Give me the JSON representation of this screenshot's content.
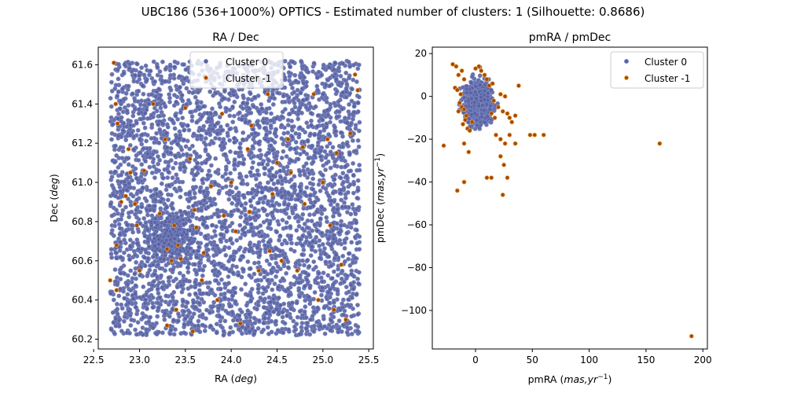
{
  "figure_title": "UBC186 (536+1000%) OPTICS - Estimated number of clusters: 1 (Silhouette: 0.8686)",
  "colors": {
    "cluster_0": "#5b5fa0",
    "cluster_0_edge": "#7b8fc8",
    "cluster_minus1": "#a6490b",
    "cluster_minus1_edge": "#f2b24a",
    "axis": "#000000"
  },
  "chart_data": [
    {
      "type": "scatter",
      "title": "RA / Dec",
      "xlabel": "RA (deg)",
      "ylabel": "Dec (deg)",
      "xlim": [
        22.55,
        25.55
      ],
      "ylim": [
        60.15,
        61.69
      ],
      "xticks": [
        "22.5",
        "23.0",
        "23.5",
        "24.0",
        "24.5",
        "25.0",
        "25.5"
      ],
      "yticks": [
        "60.2",
        "60.4",
        "60.6",
        "60.8",
        "61.0",
        "61.2",
        "61.4",
        "61.6"
      ],
      "grid": false,
      "legend_position": "top-center",
      "series": [
        {
          "name": "Cluster 0",
          "density": "dense uniform field",
          "ra_range": [
            22.68,
            25.4
          ],
          "dec_range": [
            60.22,
            61.62
          ],
          "concentration_center": [
            23.35,
            60.72
          ],
          "point_count_approx": 5300
        },
        {
          "name": "Cluster -1",
          "points": [
            [
              22.72,
              61.61
            ],
            [
              22.74,
              61.4
            ],
            [
              22.76,
              61.3
            ],
            [
              22.68,
              60.5
            ],
            [
              22.75,
              60.45
            ],
            [
              22.75,
              60.68
            ],
            [
              22.8,
              60.9
            ],
            [
              22.85,
              60.93
            ],
            [
              22.88,
              61.17
            ],
            [
              22.9,
              61.05
            ],
            [
              22.95,
              60.89
            ],
            [
              22.97,
              60.78
            ],
            [
              23.0,
              60.55
            ],
            [
              23.05,
              61.06
            ],
            [
              23.15,
              61.4
            ],
            [
              23.22,
              60.84
            ],
            [
              23.28,
              61.22
            ],
            [
              23.3,
              60.66
            ],
            [
              23.35,
              60.6
            ],
            [
              23.38,
              60.78
            ],
            [
              23.42,
              60.68
            ],
            [
              23.45,
              60.61
            ],
            [
              23.5,
              61.38
            ],
            [
              23.55,
              61.12
            ],
            [
              23.6,
              60.86
            ],
            [
              23.62,
              60.77
            ],
            [
              23.68,
              60.5
            ],
            [
              23.7,
              60.64
            ],
            [
              23.78,
              60.98
            ],
            [
              23.85,
              60.4
            ],
            [
              23.9,
              61.35
            ],
            [
              23.92,
              60.83
            ],
            [
              24.0,
              61.0
            ],
            [
              24.05,
              60.75
            ],
            [
              24.1,
              60.28
            ],
            [
              24.18,
              61.17
            ],
            [
              24.2,
              60.85
            ],
            [
              24.22,
              61.29
            ],
            [
              24.3,
              60.55
            ],
            [
              24.4,
              61.45
            ],
            [
              24.42,
              60.65
            ],
            [
              24.45,
              60.94
            ],
            [
              24.5,
              61.1
            ],
            [
              24.55,
              60.6
            ],
            [
              24.62,
              61.22
            ],
            [
              24.65,
              61.05
            ],
            [
              24.72,
              60.55
            ],
            [
              24.78,
              61.18
            ],
            [
              24.8,
              60.89
            ],
            [
              24.9,
              61.45
            ],
            [
              24.95,
              60.4
            ],
            [
              25.0,
              61.0
            ],
            [
              25.05,
              61.22
            ],
            [
              25.08,
              60.78
            ],
            [
              25.12,
              60.35
            ],
            [
              25.15,
              61.15
            ],
            [
              25.2,
              60.58
            ],
            [
              25.25,
              60.3
            ],
            [
              25.3,
              61.25
            ],
            [
              25.35,
              61.55
            ],
            [
              25.38,
              61.47
            ],
            [
              23.3,
              60.27
            ],
            [
              23.4,
              60.35
            ],
            [
              23.58,
              60.24
            ]
          ]
        }
      ]
    },
    {
      "type": "scatter",
      "title": "pmRA / pmDec",
      "xlabel": "pmRA (mas,yr^-1)",
      "ylabel": "pmDec (mas,yr^-1)",
      "xlim": [
        -38,
        204
      ],
      "ylim": [
        -118,
        23
      ],
      "xticks": [
        "0",
        "50",
        "100",
        "150",
        "200"
      ],
      "yticks": [
        "20",
        "0",
        "-20",
        "-40",
        "-60",
        "-80",
        "-100"
      ],
      "grid": false,
      "legend_position": "top-right",
      "series": [
        {
          "name": "Cluster 0",
          "density": "dense blob",
          "center": [
            2,
            -3
          ],
          "spread": [
            5,
            4
          ],
          "point_count_approx": 5300
        },
        {
          "name": "Cluster -1",
          "points": [
            [
              -20,
              15
            ],
            [
              -17,
              14
            ],
            [
              -15,
              10
            ],
            [
              -12,
              12
            ],
            [
              -10,
              8
            ],
            [
              -18,
              4
            ],
            [
              -16,
              3
            ],
            [
              -13,
              1
            ],
            [
              -14,
              -3
            ],
            [
              -12,
              -5
            ],
            [
              -10,
              -6
            ],
            [
              -8,
              -9
            ],
            [
              -15,
              -7
            ],
            [
              -9,
              -11
            ],
            [
              -11,
              -13
            ],
            [
              -7,
              -15
            ],
            [
              -3,
              -12
            ],
            [
              -5,
              -16
            ],
            [
              0,
              13
            ],
            [
              3,
              14
            ],
            [
              5,
              12
            ],
            [
              8,
              10
            ],
            [
              10,
              8
            ],
            [
              12,
              5
            ],
            [
              15,
              6
            ],
            [
              16,
              -2
            ],
            [
              14,
              -8
            ],
            [
              17,
              -10
            ],
            [
              20,
              -5
            ],
            [
              22,
              1
            ],
            [
              26,
              0
            ],
            [
              24,
              -7
            ],
            [
              28,
              -8
            ],
            [
              30,
              -10
            ],
            [
              32,
              -12
            ],
            [
              35,
              -9
            ],
            [
              38,
              5
            ],
            [
              18,
              -18
            ],
            [
              22,
              -20
            ],
            [
              26,
              -22
            ],
            [
              30,
              -18
            ],
            [
              35,
              -22
            ],
            [
              48,
              -18
            ],
            [
              52,
              -18
            ],
            [
              60,
              -18
            ],
            [
              -28,
              -23
            ],
            [
              -10,
              -22
            ],
            [
              -6,
              -26
            ],
            [
              -10,
              -40
            ],
            [
              -16,
              -44
            ],
            [
              10,
              -38
            ],
            [
              14,
              -38
            ],
            [
              24,
              -46
            ],
            [
              28,
              -38
            ],
            [
              22,
              -28
            ],
            [
              25,
              -32
            ],
            [
              162,
              -22
            ],
            [
              190,
              -112
            ]
          ]
        }
      ]
    }
  ]
}
